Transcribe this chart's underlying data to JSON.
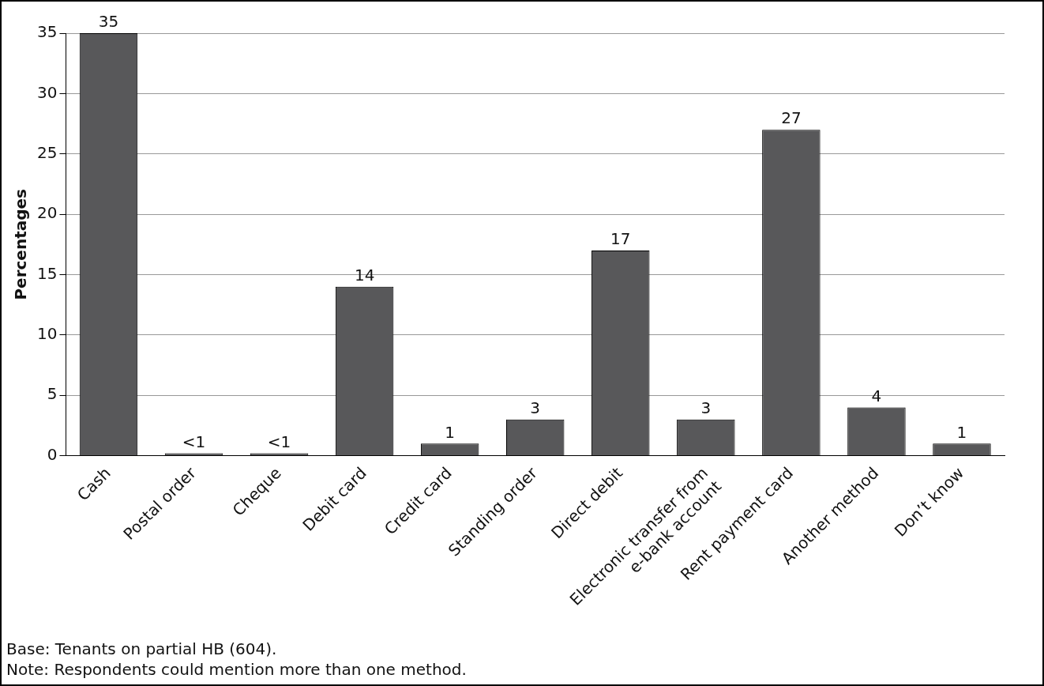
{
  "chart_data": {
    "type": "bar",
    "ylabel": "Percentages",
    "categories": [
      "Cash",
      "Postal order",
      "Cheque",
      "Debit card",
      "Credit card",
      "Standing order",
      "Direct debit",
      "Electronic transfer from\ne-bank account",
      "Rent payment card",
      "Another method",
      "Don’t know"
    ],
    "values": [
      35,
      0.2,
      0.2,
      14,
      1,
      3,
      17,
      3,
      27,
      4,
      1
    ],
    "value_labels": [
      "35",
      "<1",
      "<1",
      "14",
      "1",
      "3",
      "17",
      "3",
      "27",
      "4",
      "1"
    ],
    "color": "#58585a",
    "ylim": [
      0,
      35
    ],
    "yticks": [
      0,
      5,
      10,
      15,
      20,
      25,
      30,
      35
    ],
    "grid": "y",
    "annotations": [
      "Base: Tenants on partial HB (604).",
      "Note: Respondents could mention more than one method."
    ]
  }
}
